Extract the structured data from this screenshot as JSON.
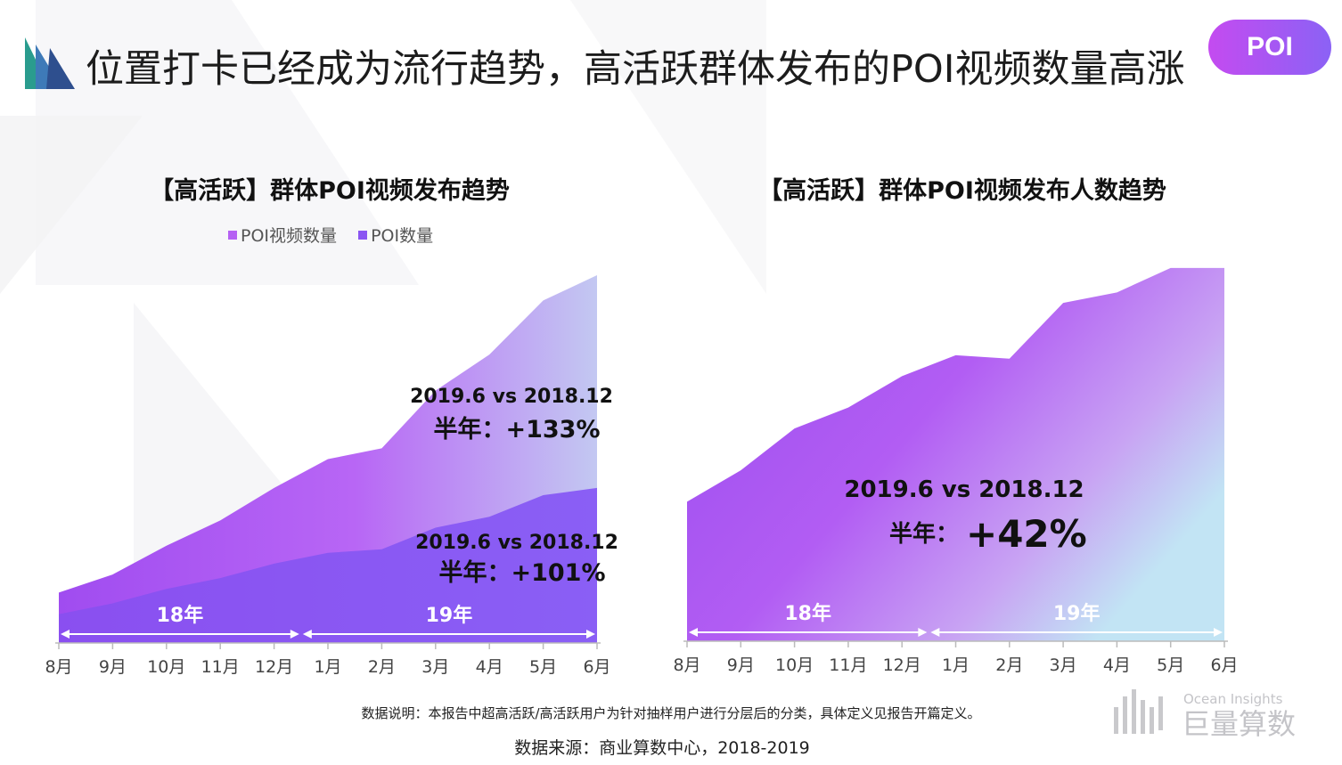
{
  "header": {
    "title": "位置打卡已经成为流行趋势，高活跃群体发布的POI视频数量高涨",
    "badge": "POI"
  },
  "charts_text": {
    "left_title": "【高活跃】群体POI视频发布趋势",
    "right_title": "【高活跃】群体POI视频发布人数趋势"
  },
  "chart_data": [
    {
      "type": "area",
      "title": "【高活跃】群体POI视频发布趋势",
      "categories": [
        "8月",
        "9月",
        "10月",
        "11月",
        "12月",
        "1月",
        "2月",
        "3月",
        "4月",
        "5月",
        "6月"
      ],
      "series": [
        {
          "name": "POI视频数量",
          "values": [
            14,
            19,
            27,
            34,
            43,
            51,
            54,
            70,
            80,
            95,
            102
          ]
        },
        {
          "name": "POI数量",
          "values": [
            8,
            11,
            15,
            18,
            22,
            25,
            26,
            32,
            35,
            41,
            43
          ]
        }
      ],
      "ylim": [
        0,
        103
      ],
      "legend": "top",
      "annotations": [
        {
          "line1": "2019.6 vs 2018.12",
          "line2": "半年：+133%"
        },
        {
          "line1": "2019.6 vs 2018.12",
          "line2": "半年：+101%"
        }
      ],
      "periods": [
        "18年",
        "19年"
      ],
      "colors": {
        "poi_video": "#b561f3",
        "poi": "#8a55f2"
      }
    },
    {
      "type": "area",
      "title": "【高活跃】群体POI视频发布人数趋势",
      "categories": [
        "8月",
        "9月",
        "10月",
        "11月",
        "12月",
        "1月",
        "2月",
        "3月",
        "4月",
        "5月",
        "6月"
      ],
      "series": [
        {
          "values": [
            40,
            49,
            61,
            67,
            76,
            82,
            81,
            97,
            100,
            107,
            107
          ]
        }
      ],
      "ylim": [
        0,
        108
      ],
      "annotations": [
        {
          "line1": "2019.6 vs 2018.12",
          "line2a": "半年：",
          "line2b": "+42%"
        }
      ],
      "periods": [
        "18年",
        "19年"
      ],
      "colors": {
        "area": "#a85af2"
      }
    }
  ],
  "footer": {
    "note": "数据说明：本报告中超高活跃/高活跃用户为针对抽样用户进行分层后的分类，具体定义见报告开篇定义。",
    "source": "数据来源：商业算数中心，2018-2019",
    "brand_en": "Ocean Insights",
    "brand_cn": "巨量算数"
  }
}
